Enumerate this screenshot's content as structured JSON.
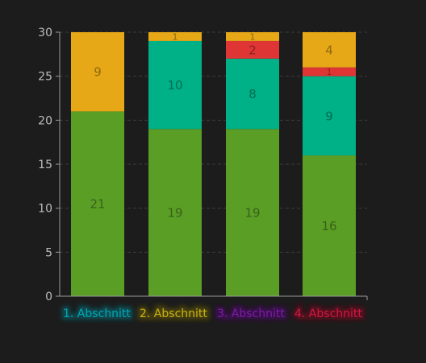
{
  "chart_data": {
    "type": "bar",
    "stacked": true,
    "categories": [
      "",
      "",
      "",
      ""
    ],
    "series": [
      {
        "name": "1. Abschnitt",
        "color": "#00b087",
        "values": [
          0,
          10,
          8,
          9
        ]
      },
      {
        "name": "2. Abschnitt",
        "color": "#e6a817",
        "values": [
          9,
          1,
          1,
          4
        ]
      },
      {
        "name": "3. Abschnitt",
        "color": "#7a1fa2",
        "values": [
          0,
          0,
          0,
          0
        ]
      },
      {
        "name": "4. Abschnitt",
        "color": "#e03535",
        "values": [
          0,
          0,
          2,
          1
        ]
      }
    ],
    "stack_order": [
      {
        "name": "",
        "color": "#5a9e26",
        "values": [
          21,
          19,
          19,
          16
        ]
      },
      {
        "series": "1. Abschnitt"
      },
      {
        "series": "4. Abschnitt"
      },
      {
        "series": "2. Abschnitt"
      }
    ],
    "base_values": [
      21,
      19,
      19,
      16
    ],
    "base_color": "#5a9e26",
    "ylim": [
      0,
      30
    ],
    "yticks": [
      "0",
      "5",
      "10",
      "15",
      "20",
      "25",
      "30"
    ],
    "grid": true,
    "legend_position": "bottom",
    "title": "",
    "xlabel": "",
    "ylabel": ""
  },
  "legend": {
    "items": [
      {
        "label": "1. Abschnitt",
        "text_color": "#00a7b5",
        "halo": "#0b4d52"
      },
      {
        "label": "2. Abschnitt",
        "text_color": "#c8b214",
        "halo": "#4a420a"
      },
      {
        "label": "3. Abschnitt",
        "text_color": "#7a1fa2",
        "halo": "#3a0850"
      },
      {
        "label": "4. Abschnitt",
        "text_color": "#cf1a45",
        "halo": "#5a0a1e"
      }
    ]
  },
  "colors": {
    "background": "#1c1c1c",
    "axis": "#9a9a9a",
    "grid": "#3c3c3c",
    "tick_text": "#bdbdbd"
  }
}
